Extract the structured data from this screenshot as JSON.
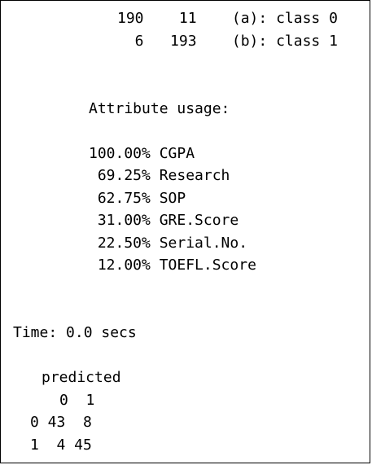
{
  "console": {
    "confusion_matrix": {
      "rows": [
        "190    11    (a): class 0",
        "  6   193    (b): class 1"
      ]
    },
    "attribute_usage": {
      "heading": "Attribute usage:",
      "items": [
        "100.00% CGPA",
        " 69.25% Research",
        " 62.75% SOP",
        " 31.00% GRE.Score",
        " 22.50% Serial.No.",
        " 12.00% TOEFL.Score"
      ]
    },
    "time_line": "Time: 0.0 secs",
    "predicted_table": {
      "heading": "predicted",
      "header_row": "0  1",
      "rows": [
        "0 43  8",
        "1  4 45"
      ]
    }
  }
}
